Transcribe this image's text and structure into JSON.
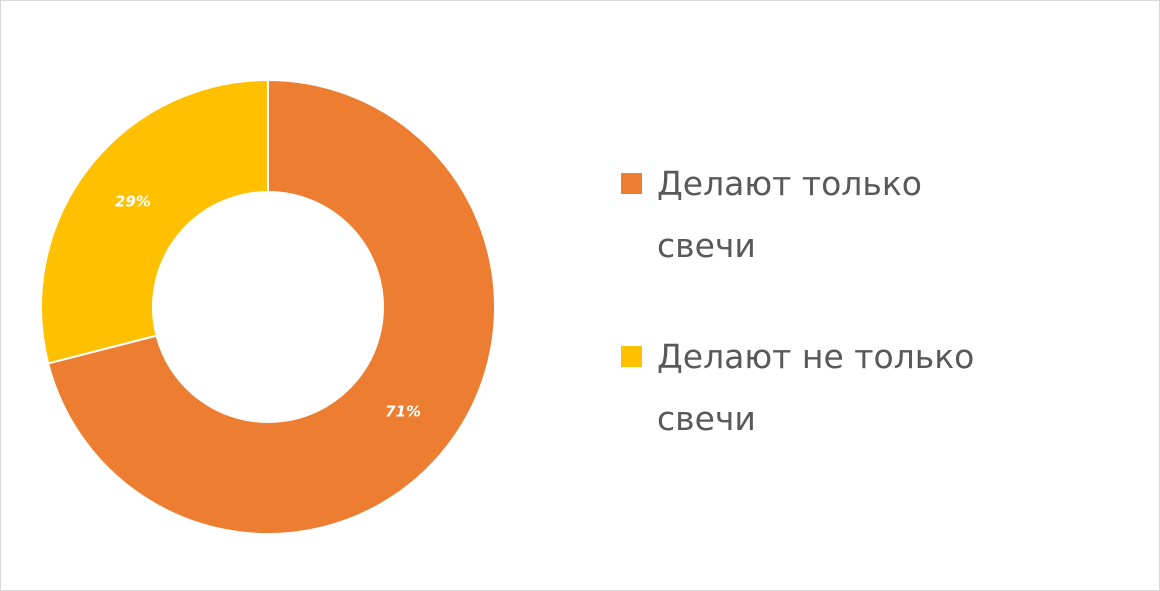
{
  "chart_data": {
    "type": "donut",
    "categories": [
      "Делают только свечи",
      "Делают не только свечи"
    ],
    "values": [
      71,
      29
    ],
    "value_labels": [
      "71%",
      "29%"
    ],
    "colors": [
      "#ed7d31",
      "#ffc000"
    ]
  }
}
